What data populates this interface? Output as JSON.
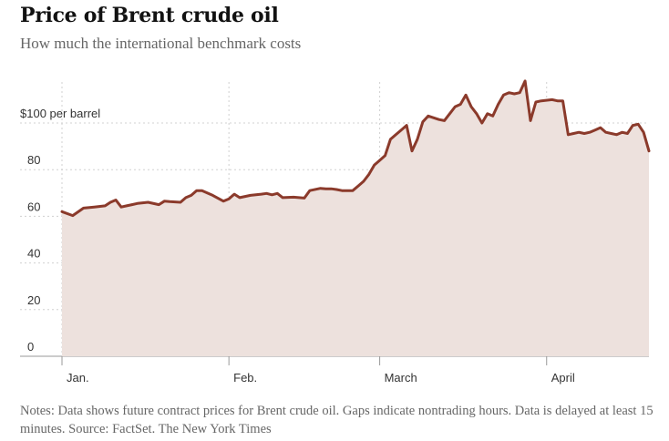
{
  "header": {
    "title": "Price of Brent crude oil",
    "subtitle": "How much the international benchmark costs"
  },
  "footer": {
    "notes": "Notes: Data shows future contract prices for Brent crude oil. Gaps indicate nontrading hours. Data is delayed at least 15 minutes.  Source: FactSet.  The New York Times"
  },
  "colors": {
    "line": "#8b3a2b",
    "area": "#ede1dd",
    "grid": "#d0d0d0"
  },
  "chart_data": {
    "type": "area",
    "title": "Price of Brent crude oil",
    "subtitle": "How much the international benchmark costs",
    "ylabel": "$ per barrel",
    "xlabel": "",
    "ylim": [
      0,
      120
    ],
    "yticks": [
      0,
      20,
      40,
      60,
      80,
      100
    ],
    "ytick_labels": [
      "0",
      "20",
      "40",
      "60",
      "80",
      "$100 per barrel"
    ],
    "xlim": [
      0,
      109
    ],
    "xticks": [
      {
        "x": 0,
        "label": "Jan."
      },
      {
        "x": 31,
        "label": "Feb."
      },
      {
        "x": 59,
        "label": "March"
      },
      {
        "x": 90,
        "label": "April"
      }
    ],
    "x_unit": "days since Jan. 1",
    "grid": true,
    "series": [
      {
        "name": "Brent crude oil price",
        "x": [
          0,
          2,
          4,
          6,
          8,
          9,
          10,
          11,
          12,
          13,
          14,
          16,
          18,
          19,
          20,
          22,
          23,
          24,
          25,
          26,
          28,
          30,
          31,
          32,
          33,
          34,
          35,
          37,
          38,
          39,
          40,
          41,
          43,
          44,
          45,
          46,
          48,
          49,
          50,
          51,
          52,
          54,
          55,
          56,
          57,
          58,
          59,
          60,
          61,
          62,
          63,
          64,
          65,
          66,
          67,
          68,
          70,
          71,
          72,
          73,
          74,
          75,
          76,
          77,
          78,
          79,
          80,
          81,
          82,
          83,
          84,
          85,
          86,
          87,
          88,
          89,
          91,
          92,
          93,
          94,
          95,
          96,
          97,
          98,
          99,
          100,
          101,
          102,
          103,
          104,
          105,
          106,
          107,
          108,
          109
        ],
        "values": [
          62,
          60.3,
          63.5,
          64,
          64.5,
          66,
          67,
          64,
          64.5,
          65,
          65.5,
          66,
          65,
          66.5,
          66.3,
          66,
          68,
          69,
          71,
          71,
          69,
          66.5,
          67.5,
          69.5,
          68,
          68.5,
          69,
          69.5,
          69.8,
          69.2,
          69.8,
          68,
          68.2,
          68,
          67.8,
          71,
          72,
          71.8,
          71.8,
          71.5,
          71,
          71,
          73,
          75,
          78,
          82,
          84,
          86,
          93,
          95,
          97,
          99,
          88,
          93,
          100.5,
          103,
          101.5,
          101,
          104,
          107,
          108,
          112,
          107,
          104,
          100,
          104,
          103,
          108,
          112,
          113,
          112.5,
          113,
          118,
          101,
          109,
          109.5,
          110,
          109.5,
          109.5,
          95,
          95.5,
          96,
          95.5,
          96,
          97,
          98,
          96,
          95.5,
          95,
          96,
          95.5,
          99,
          99.5,
          96,
          88
        ]
      }
    ]
  }
}
